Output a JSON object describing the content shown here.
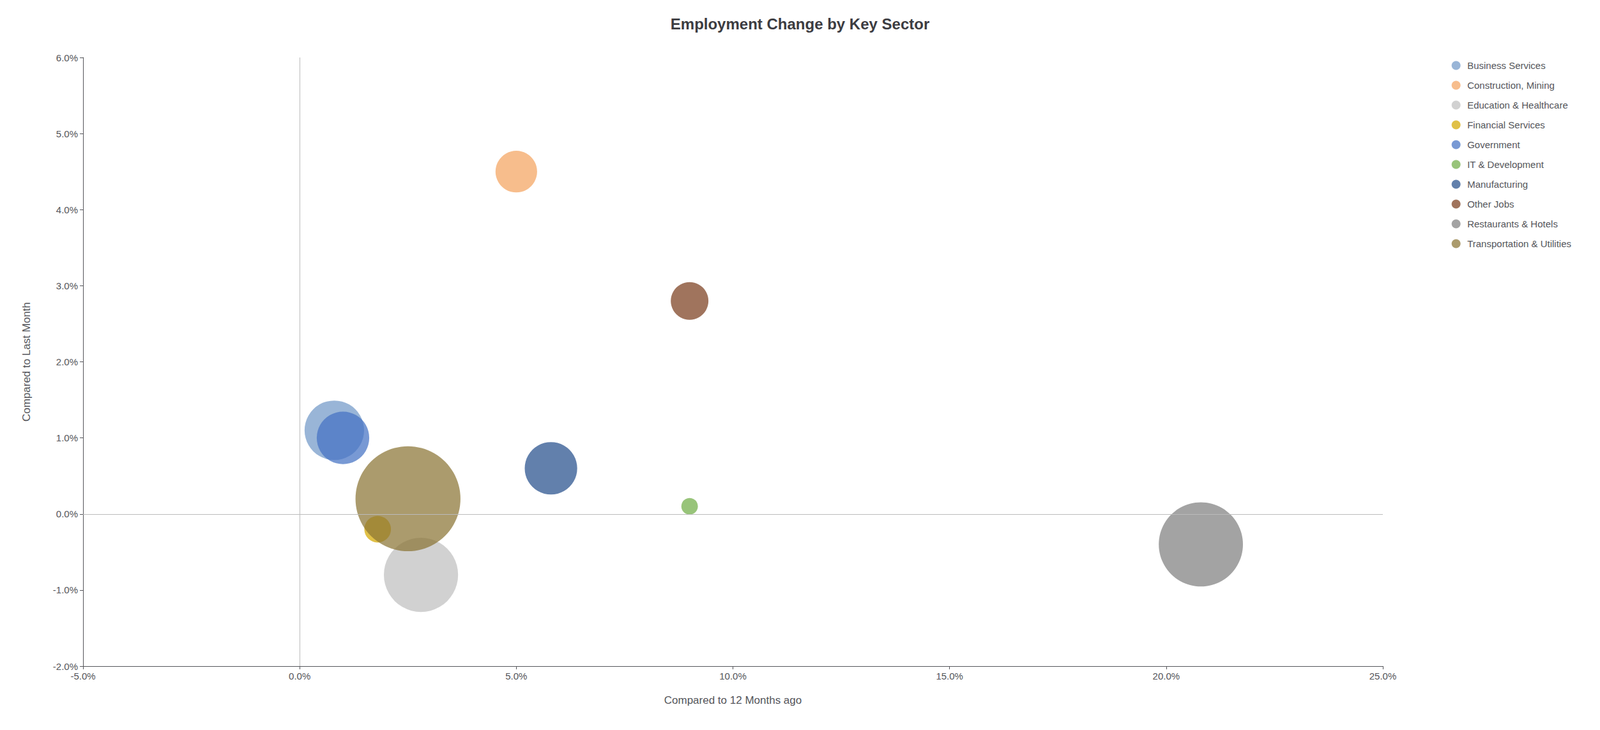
{
  "chart_data": {
    "type": "scatter",
    "title": "Employment Change by Key Sector",
    "xlabel": "Compared to 12 Months ago",
    "ylabel": "Compared to Last Month",
    "xlim": [
      -0.05,
      0.25
    ],
    "ylim": [
      -0.02,
      0.06
    ],
    "xticks": [
      {
        "value": -0.05,
        "label": "-5.0%"
      },
      {
        "value": 0.0,
        "label": "0.0%"
      },
      {
        "value": 0.05,
        "label": "5.0%"
      },
      {
        "value": 0.1,
        "label": "10.0%"
      },
      {
        "value": 0.15,
        "label": "15.0%"
      },
      {
        "value": 0.2,
        "label": "20.0%"
      },
      {
        "value": 0.25,
        "label": "25.0%"
      }
    ],
    "yticks": [
      {
        "value": -0.02,
        "label": "-2.0%"
      },
      {
        "value": -0.01,
        "label": "-1.0%"
      },
      {
        "value": 0.0,
        "label": "0.0%"
      },
      {
        "value": 0.01,
        "label": "1.0%"
      },
      {
        "value": 0.02,
        "label": "2.0%"
      },
      {
        "value": 0.03,
        "label": "3.0%"
      },
      {
        "value": 0.04,
        "label": "4.0%"
      },
      {
        "value": 0.05,
        "label": "5.0%"
      },
      {
        "value": 0.06,
        "label": "6.0%"
      }
    ],
    "grid": false,
    "legend": "right",
    "series": [
      {
        "name": "Business Services",
        "color": "#7199c8",
        "x": [
          0.008
        ],
        "values": [
          0.011
        ],
        "sizes": [
          4500
        ]
      },
      {
        "name": "Construction, Mining",
        "color": "#f4a460",
        "x": [
          0.05
        ],
        "values": [
          0.045
        ],
        "sizes": [
          2200
        ]
      },
      {
        "name": "Education & Healthcare",
        "color": "#bfbfbf",
        "x": [
          0.028
        ],
        "values": [
          -0.008
        ],
        "sizes": [
          7000
        ]
      },
      {
        "name": "Financial Services",
        "color": "#d4a800",
        "x": [
          0.018
        ],
        "values": [
          -0.002
        ],
        "sizes": [
          900
        ]
      },
      {
        "name": "Government",
        "color": "#4472c4",
        "x": [
          0.01
        ],
        "values": [
          0.01
        ],
        "sizes": [
          3500
        ]
      },
      {
        "name": "IT & Development",
        "color": "#70ad47",
        "x": [
          0.09
        ],
        "values": [
          0.001
        ],
        "sizes": [
          350
        ]
      },
      {
        "name": "Manufacturing",
        "color": "#264f8c",
        "x": [
          0.058
        ],
        "values": [
          0.006
        ],
        "sizes": [
          3500
        ]
      },
      {
        "name": "Other Jobs",
        "color": "#7b3f1e",
        "x": [
          0.09
        ],
        "values": [
          0.028
        ],
        "sizes": [
          1800
        ]
      },
      {
        "name": "Restaurants & Hotels",
        "color": "#7f7f7f",
        "x": [
          0.208
        ],
        "values": [
          -0.004
        ],
        "sizes": [
          9000
        ]
      },
      {
        "name": "Transportation & Utilities",
        "color": "#8b7535",
        "x": [
          0.025
        ],
        "values": [
          0.002
        ],
        "sizes": [
          14000
        ]
      }
    ]
  }
}
